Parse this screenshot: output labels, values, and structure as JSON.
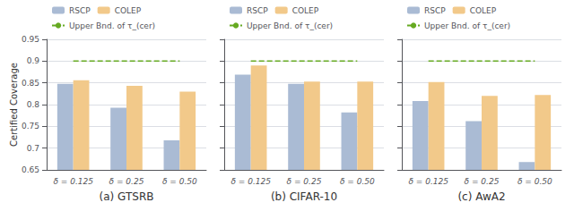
{
  "chart_data": [
    {
      "type": "bar",
      "title": "(a) GTSRB",
      "ylabel": "Certified Coverage",
      "categories": [
        "δ = 0.125",
        "δ = 0.25",
        "δ = 0.50"
      ],
      "series": [
        {
          "name": "RSCP",
          "color": "#aabbd4",
          "values": [
            0.848,
            0.793,
            0.718
          ]
        },
        {
          "name": "COLEP",
          "color": "#f2c98a",
          "values": [
            0.856,
            0.843,
            0.83
          ]
        },
        {
          "name": "Upper Bnd. of τ_(cer)",
          "type": "line",
          "line_style": "dashed",
          "color": "#66aa22",
          "values": [
            0.9,
            0.9,
            0.9
          ]
        }
      ],
      "ylim": [
        0.65,
        0.95
      ],
      "yticks": [
        0.65,
        0.7,
        0.75,
        0.8,
        0.85,
        0.9,
        0.95
      ],
      "grid": true,
      "legend": "upper left"
    },
    {
      "type": "bar",
      "title": "(b) CIFAR-10",
      "categories": [
        "δ = 0.125",
        "δ = 0.25",
        "δ = 0.50"
      ],
      "series": [
        {
          "name": "RSCP",
          "color": "#aabbd4",
          "values": [
            0.869,
            0.848,
            0.782
          ]
        },
        {
          "name": "COLEP",
          "color": "#f2c98a",
          "values": [
            0.89,
            0.853,
            0.853
          ]
        },
        {
          "name": "Upper Bnd. of τ_(cer)",
          "type": "line",
          "line_style": "dashed",
          "color": "#66aa22",
          "values": [
            0.9,
            0.9,
            0.9
          ]
        }
      ],
      "ylim": [
        0.65,
        0.95
      ],
      "yticks": [
        0.65,
        0.7,
        0.75,
        0.8,
        0.85,
        0.9,
        0.95
      ],
      "grid": true,
      "legend": "upper left",
      "tick_labels": "x"
    },
    {
      "type": "bar",
      "title": "(c) AwA2",
      "categories": [
        "δ = 0.125",
        "δ = 0.25",
        "δ = 0.50"
      ],
      "series": [
        {
          "name": "RSCP",
          "color": "#aabbd4",
          "values": [
            0.808,
            0.762,
            0.668
          ]
        },
        {
          "name": "COLEP",
          "color": "#f2c98a",
          "values": [
            0.852,
            0.82,
            0.822
          ]
        },
        {
          "name": "Upper Bnd. of τ_(cer)",
          "type": "line",
          "line_style": "dashed",
          "color": "#66aa22",
          "values": [
            0.9,
            0.9,
            0.9
          ]
        }
      ],
      "ylim": [
        0.65,
        0.95
      ],
      "yticks": [
        0.65,
        0.7,
        0.75,
        0.8,
        0.85,
        0.9,
        0.95
      ],
      "grid": true,
      "legend": "upper left",
      "tick_labels": "x"
    }
  ]
}
